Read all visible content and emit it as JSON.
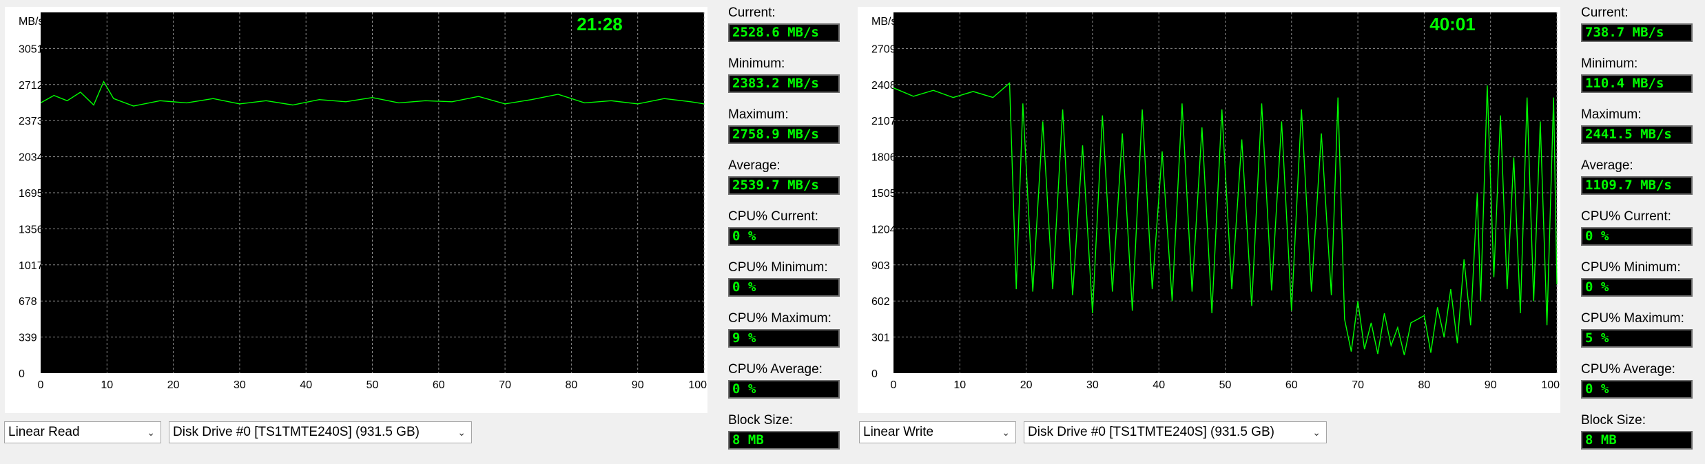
{
  "colors": {
    "trace": "#00ff00",
    "plot_bg": "#000000",
    "value_fg": "#00ff00"
  },
  "panels": [
    {
      "id": "read",
      "mode_select": {
        "value": "Linear Read",
        "icon": "chevron-down-icon"
      },
      "drive_select": {
        "value": "Disk Drive #0  [TS1TMTE240S]  (931.5 GB)",
        "icon": "chevron-down-icon"
      },
      "stats": [
        {
          "label": "Current:",
          "value": "2528.6 MB/s"
        },
        {
          "label": "Minimum:",
          "value": "2383.2 MB/s"
        },
        {
          "label": "Maximum:",
          "value": "2758.9 MB/s"
        },
        {
          "label": "Average:",
          "value": "2539.7 MB/s"
        },
        {
          "label": "CPU% Current:",
          "value": "0 %"
        },
        {
          "label": "CPU% Minimum:",
          "value": "0 %"
        },
        {
          "label": "CPU% Maximum:",
          "value": "9 %"
        },
        {
          "label": "CPU% Average:",
          "value": "0 %"
        },
        {
          "label": "Block Size:",
          "value": "8 MB"
        }
      ],
      "chart_data": {
        "type": "line",
        "title": "21:28",
        "ylabel": "MB/s",
        "xlabel": "",
        "x_unit_label": "%",
        "y_ticks": [
          "0",
          "339",
          "678",
          "1017",
          "1356",
          "1695",
          "2034",
          "2373",
          "2712",
          "3051"
        ],
        "x_ticks": [
          "0",
          "10",
          "20",
          "30",
          "40",
          "50",
          "60",
          "70",
          "80",
          "90",
          "100"
        ],
        "ylim": [
          0,
          3390
        ],
        "xlim": [
          0,
          100
        ],
        "grid": true,
        "series": [
          {
            "x": [
              0,
              2,
              4,
              6,
              8,
              9.5,
              11,
              14,
              18,
              22,
              26,
              30,
              34,
              38,
              42,
              46,
              50,
              54,
              58,
              62,
              66,
              70,
              74,
              78,
              82,
              86,
              90,
              94,
              98,
              100
            ],
            "values": [
              2540,
              2610,
              2560,
              2640,
              2520,
              2740,
              2580,
              2510,
              2560,
              2540,
              2580,
              2530,
              2560,
              2520,
              2570,
              2550,
              2590,
              2540,
              2560,
              2550,
              2600,
              2530,
              2570,
              2620,
              2540,
              2560,
              2530,
              2580,
              2550,
              2530
            ]
          }
        ]
      }
    },
    {
      "id": "write",
      "mode_select": {
        "value": "Linear Write",
        "icon": "chevron-down-icon"
      },
      "drive_select": {
        "value": "Disk Drive #0  [TS1TMTE240S]  (931.5 GB)",
        "icon": "chevron-down-icon"
      },
      "stats": [
        {
          "label": "Current:",
          "value": "738.7 MB/s"
        },
        {
          "label": "Minimum:",
          "value": "110.4 MB/s"
        },
        {
          "label": "Maximum:",
          "value": "2441.5 MB/s"
        },
        {
          "label": "Average:",
          "value": "1109.7 MB/s"
        },
        {
          "label": "CPU% Current:",
          "value": "0 %"
        },
        {
          "label": "CPU% Minimum:",
          "value": "0 %"
        },
        {
          "label": "CPU% Maximum:",
          "value": "5 %"
        },
        {
          "label": "CPU% Average:",
          "value": "0 %"
        },
        {
          "label": "Block Size:",
          "value": "8 MB"
        }
      ],
      "chart_data": {
        "type": "line",
        "title": "40:01",
        "ylabel": "MB/s",
        "xlabel": "",
        "x_unit_label": "%",
        "y_ticks": [
          "0",
          "301",
          "602",
          "903",
          "1204",
          "1505",
          "1806",
          "2107",
          "2408",
          "2709"
        ],
        "x_ticks": [
          "0",
          "10",
          "20",
          "30",
          "40",
          "50",
          "60",
          "70",
          "80",
          "90",
          "100"
        ],
        "ylim": [
          0,
          3010
        ],
        "xlim": [
          0,
          100
        ],
        "grid": true,
        "series": [
          {
            "x": [
              0,
              3,
              6,
              9,
              12,
              15,
              17.5,
              18.5,
              19.5,
              21,
              22.5,
              24,
              25.5,
              27,
              28.5,
              30,
              31.5,
              33,
              34.5,
              36,
              37.5,
              39,
              40.5,
              42,
              43.5,
              45,
              46.5,
              48,
              49.5,
              51,
              52.5,
              54,
              55.5,
              57,
              58.5,
              60,
              61.5,
              63,
              64.5,
              66,
              67,
              68,
              69,
              70,
              71,
              72,
              73,
              74,
              75,
              76,
              77,
              78,
              79,
              80,
              81,
              82,
              83,
              84,
              85,
              86,
              87,
              88,
              88.5,
              89.5,
              90.5,
              91.5,
              92.5,
              93.5,
              94.5,
              95.5,
              96.5,
              97.5,
              98.5,
              99.5,
              100
            ],
            "values": [
              2380,
              2310,
              2360,
              2300,
              2350,
              2300,
              2420,
              700,
              2250,
              680,
              2100,
              700,
              2200,
              650,
              1900,
              500,
              2150,
              680,
              2000,
              520,
              2200,
              700,
              1850,
              600,
              2250,
              680,
              2050,
              500,
              2200,
              700,
              1950,
              560,
              2250,
              690,
              2100,
              520,
              2200,
              680,
              2000,
              650,
              2300,
              450,
              180,
              600,
              200,
              420,
              160,
              500,
              230,
              380,
              150,
              420,
              450,
              480,
              170,
              550,
              300,
              700,
              250,
              950,
              400,
              1500,
              600,
              2400,
              800,
              2150,
              700,
              1800,
              500,
              2300,
              600,
              2100,
              400,
              2300,
              740
            ]
          }
        ]
      }
    }
  ]
}
